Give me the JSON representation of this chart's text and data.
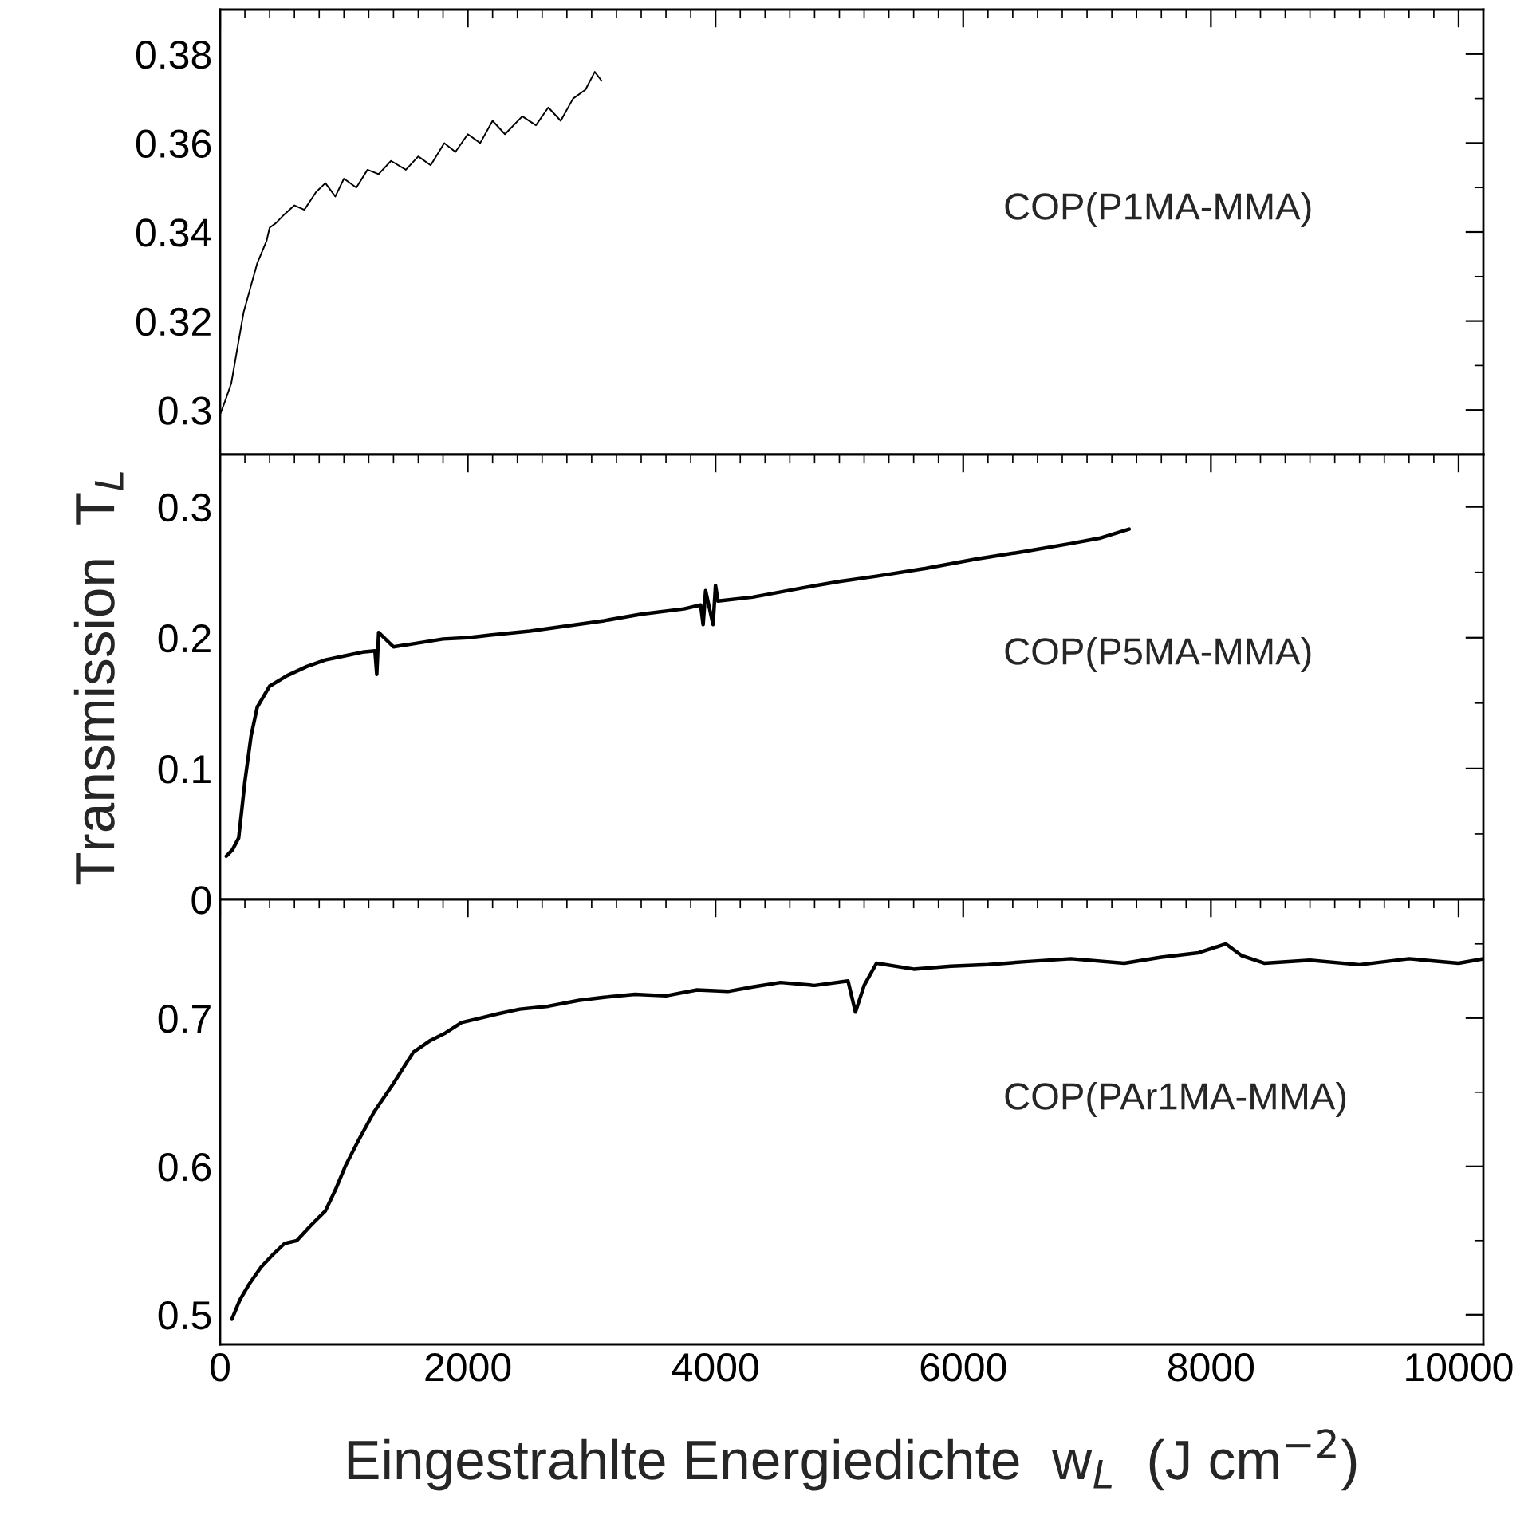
{
  "chart_data": [
    {
      "type": "line",
      "xlim": [
        0,
        10200
      ],
      "xticks": [
        0,
        2000,
        4000,
        6000,
        8000,
        10000
      ],
      "ylim": [
        0.29,
        0.39
      ],
      "yticks": [
        {
          "value": 0.3,
          "label": "0.3"
        },
        0.32,
        0.34,
        0.36,
        0.38
      ],
      "tick_labels": "y",
      "grid": false,
      "legend": false,
      "marker": "none",
      "line_style": "solid",
      "series": [
        {
          "name": "COP(P1MA-MMA)",
          "color": "#000000",
          "x": [
            0,
            40,
            90,
            140,
            190,
            240,
            300,
            375,
            400,
            450,
            520,
            600,
            680,
            775,
            850,
            930,
            1000,
            1100,
            1190,
            1280,
            1380,
            1500,
            1600,
            1700,
            1810,
            1900,
            2000,
            2100,
            2200,
            2300,
            2440,
            2550,
            2650,
            2750,
            2850,
            2950,
            3025,
            3080
          ],
          "values": [
            0.299,
            0.302,
            0.306,
            0.314,
            0.322,
            0.327,
            0.333,
            0.338,
            0.341,
            0.342,
            0.344,
            0.346,
            0.345,
            0.349,
            0.351,
            0.348,
            0.352,
            0.35,
            0.354,
            0.353,
            0.356,
            0.354,
            0.357,
            0.355,
            0.36,
            0.358,
            0.362,
            0.36,
            0.365,
            0.362,
            0.366,
            0.364,
            0.368,
            0.365,
            0.37,
            0.372,
            0.376,
            0.374
          ]
        }
      ]
    },
    {
      "type": "line",
      "xlim": [
        0,
        10200
      ],
      "xticks": [
        0,
        2000,
        4000,
        6000,
        8000,
        10000
      ],
      "ylim": [
        0,
        0.34
      ],
      "yticks": [
        0,
        0.1,
        0.2,
        0.3
      ],
      "tick_labels": "y",
      "grid": false,
      "legend": false,
      "marker": "none",
      "line_style": "solid",
      "ylabel": "Transmission  T$_{L}$",
      "series": [
        {
          "name": "COP(P5MA-MMA)",
          "color": "#000000",
          "x": [
            50,
            100,
            150,
            200,
            250,
            300,
            400,
            540,
            700,
            850,
            1000,
            1150,
            1250,
            1265,
            1280,
            1400,
            1600,
            1800,
            2000,
            2180,
            2500,
            2800,
            3100,
            3400,
            3745,
            3880,
            3900,
            3920,
            3980,
            4000,
            4020,
            4300,
            4700,
            5000,
            5300,
            5700,
            6100,
            6500,
            6870,
            7100,
            7340
          ],
          "values": [
            0.033,
            0.038,
            0.047,
            0.09,
            0.125,
            0.147,
            0.163,
            0.171,
            0.178,
            0.183,
            0.186,
            0.189,
            0.19,
            0.172,
            0.204,
            0.193,
            0.196,
            0.199,
            0.2,
            0.202,
            0.205,
            0.209,
            0.213,
            0.218,
            0.222,
            0.225,
            0.21,
            0.236,
            0.21,
            0.24,
            0.228,
            0.231,
            0.238,
            0.243,
            0.247,
            0.253,
            0.26,
            0.266,
            0.272,
            0.276,
            0.283
          ]
        }
      ]
    },
    {
      "type": "line",
      "xlim": [
        0,
        10200
      ],
      "xticks": [
        0,
        2000,
        4000,
        6000,
        8000,
        10000
      ],
      "ylim": [
        0.48,
        0.78
      ],
      "yticks": [
        0.5,
        0.6,
        0.7
      ],
      "grid": false,
      "legend": false,
      "marker": "none",
      "line_style": "solid",
      "xlabel": "Eingestrahlte Energiedichte  w$_{L}$  (J cm$^{−2}$)",
      "series": [
        {
          "name": "COP(PAr1MA-MMA)",
          "color": "#000000",
          "x": [
            95,
            160,
            230,
            330,
            420,
            520,
            620,
            730,
            850,
            930,
            1010,
            1120,
            1245,
            1400,
            1560,
            1700,
            1820,
            1950,
            2100,
            2250,
            2420,
            2650,
            2900,
            3100,
            3350,
            3600,
            3850,
            4100,
            4300,
            4525,
            4800,
            5070,
            5130,
            5200,
            5300,
            5600,
            5900,
            6200,
            6500,
            6870,
            7300,
            7600,
            7900,
            8120,
            8250,
            8430,
            8800,
            9200,
            9600,
            10000,
            10200
          ],
          "values": [
            0.497,
            0.51,
            0.52,
            0.532,
            0.54,
            0.548,
            0.55,
            0.56,
            0.57,
            0.584,
            0.6,
            0.618,
            0.637,
            0.656,
            0.677,
            0.685,
            0.69,
            0.697,
            0.7,
            0.703,
            0.706,
            0.708,
            0.712,
            0.714,
            0.716,
            0.715,
            0.719,
            0.718,
            0.721,
            0.724,
            0.722,
            0.725,
            0.704,
            0.722,
            0.737,
            0.733,
            0.735,
            0.736,
            0.738,
            0.74,
            0.737,
            0.741,
            0.744,
            0.75,
            0.742,
            0.737,
            0.739,
            0.736,
            0.74,
            0.737,
            0.74
          ]
        }
      ]
    }
  ]
}
